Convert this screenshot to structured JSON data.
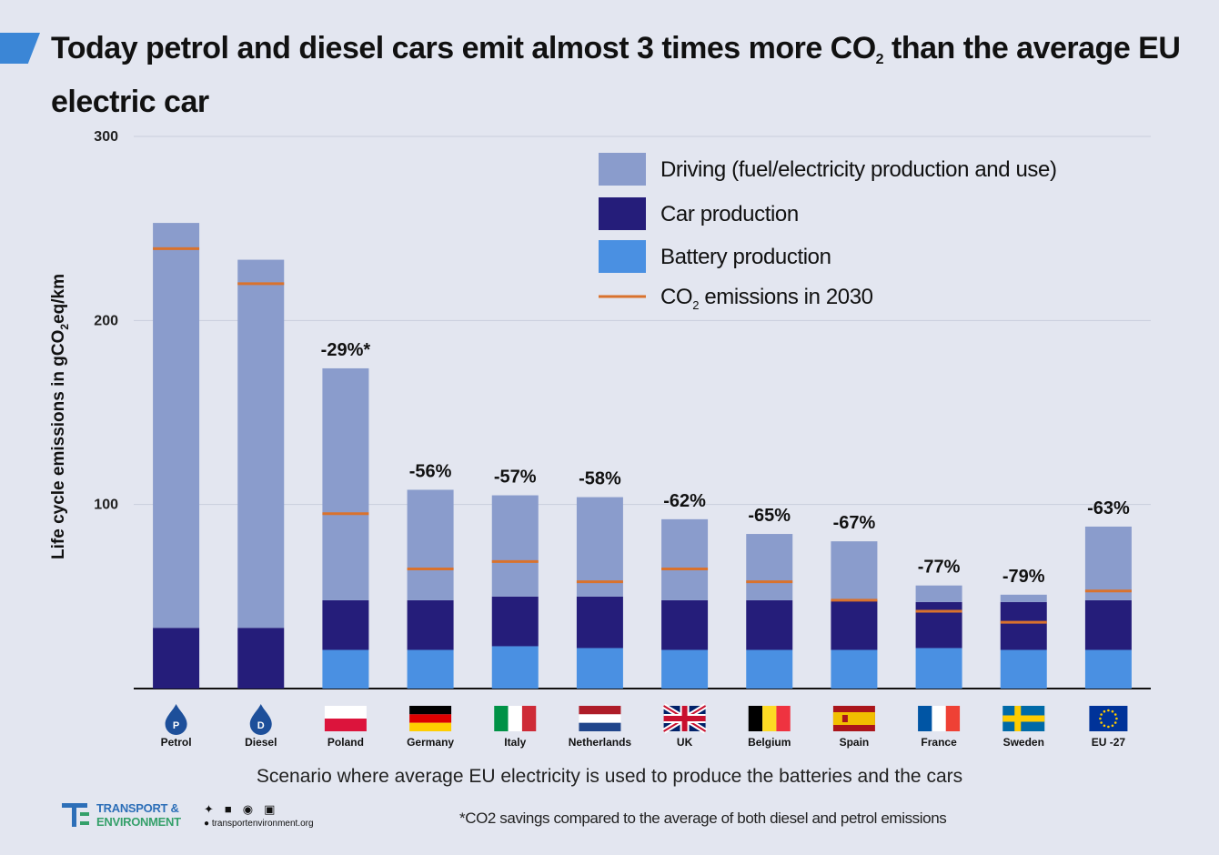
{
  "title": {
    "pre": "Today petrol and diesel cars emit almost 3 times more CO",
    "sub": "2",
    "post": " than the average EU electric car"
  },
  "chart_data": {
    "type": "bar",
    "stacked": true,
    "categories": [
      "Petrol",
      "Diesel",
      "Poland",
      "Germany",
      "Italy",
      "Netherlands",
      "UK",
      "Belgium",
      "Spain",
      "France",
      "Sweden",
      "EU -27"
    ],
    "series": [
      {
        "name": "Battery production",
        "color": "#4a90e2",
        "values": [
          0,
          0,
          21,
          21,
          23,
          22,
          21,
          21,
          21,
          22,
          21,
          21
        ]
      },
      {
        "name": "Car production",
        "color": "#251d7a",
        "values": [
          33,
          33,
          27,
          27,
          27,
          28,
          27,
          27,
          27,
          25,
          26,
          27
        ]
      },
      {
        "name": "Driving (fuel/electricity production and use)",
        "color": "#8a9ccc",
        "values": [
          220,
          200,
          126,
          60,
          55,
          54,
          44,
          36,
          32,
          9,
          4,
          40
        ]
      }
    ],
    "co2_2030": {
      "name": "CO2 emissions in 2030",
      "color": "#d9722d",
      "values": [
        239,
        220,
        95,
        65,
        69,
        58,
        65,
        58,
        48,
        42,
        36,
        53
      ]
    },
    "data_labels": [
      "",
      "",
      "-29%*",
      "-56%",
      "-57%",
      "-58%",
      "-62%",
      "-65%",
      "-67%",
      "-77%",
      "-79%",
      "-63%"
    ],
    "category_icons": [
      "fuel-drop-petrol-icon",
      "fuel-drop-diesel-icon",
      "flag-poland-icon",
      "flag-germany-icon",
      "flag-italy-icon",
      "flag-netherlands-icon",
      "flag-uk-icon",
      "flag-belgium-icon",
      "flag-spain-icon",
      "flag-france-icon",
      "flag-sweden-icon",
      "flag-eu-icon"
    ],
    "drop_letters": [
      "P",
      "D"
    ],
    "ylabel_pre": "Life  cycle emissions in gCO",
    "ylabel_sub": "2",
    "ylabel_post": "eq/km",
    "ylim": [
      0,
      300
    ],
    "yticks": [
      100,
      200,
      300
    ],
    "grid": true,
    "legend_position": "top-right",
    "legend": [
      {
        "label": "Driving (fuel/electricity production and use)",
        "kind": "box",
        "color": "#8a9ccc"
      },
      {
        "label": "Car production",
        "kind": "box",
        "color": "#251d7a"
      },
      {
        "label": "Battery production",
        "kind": "box",
        "color": "#4a90e2"
      },
      {
        "label": "CO2 emissions in 2030",
        "kind": "line",
        "color": "#d9722d",
        "pre": "CO",
        "sub": "2",
        "post": " emissions in 2030"
      }
    ]
  },
  "xlabel": "Scenario where  average EU electricity is used to produce the batteries and the cars",
  "footnote": "*CO2 savings compared to the average of both diesel and petrol emissions",
  "logo": {
    "line1": "TRANSPORT &",
    "line2": "ENVIRONMENT"
  },
  "social": {
    "icons": [
      "twitter-icon",
      "facebook-icon",
      "instagram-icon",
      "linkedin-icon"
    ],
    "site": "transportenvironment.org"
  }
}
